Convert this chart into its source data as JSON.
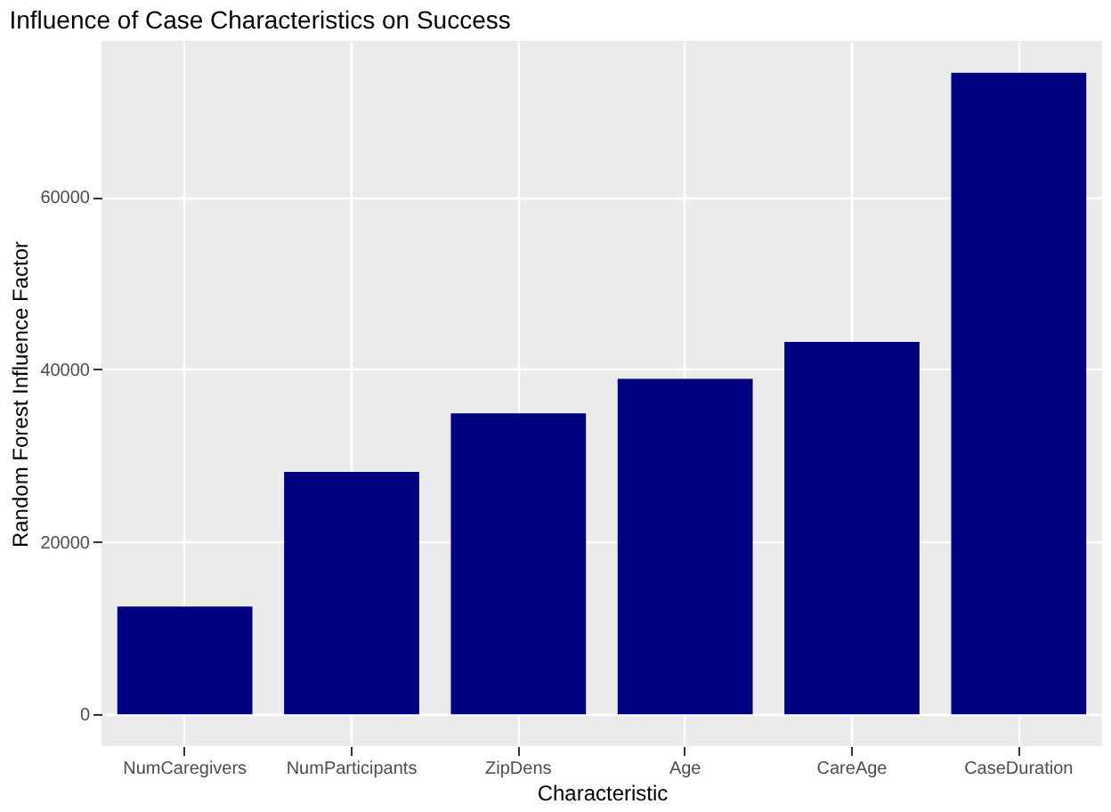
{
  "chart_data": {
    "type": "bar",
    "title": "Influence of Case Characteristics on Success",
    "xlabel": "Characteristic",
    "ylabel": "Random Forest Influence Factor",
    "categories": [
      "NumCaregivers",
      "NumParticipants",
      "ZipDens",
      "Age",
      "CareAge",
      "CaseDuration"
    ],
    "values": [
      12500,
      28100,
      34900,
      38900,
      43200,
      74400
    ],
    "color": "#000080",
    "ylim": [
      -3700,
      78100
    ],
    "yticks": [
      0,
      20000,
      40000,
      60000
    ],
    "grid": true
  }
}
